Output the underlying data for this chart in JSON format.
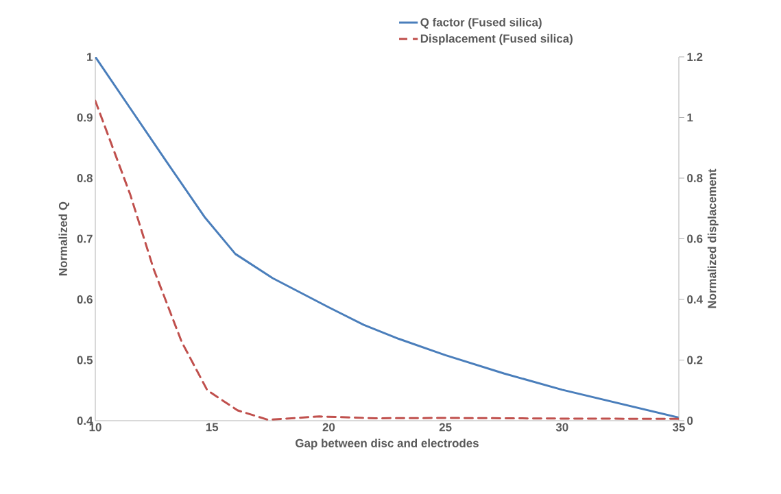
{
  "chart_data": {
    "type": "line",
    "xlabel": "Gap between disc and electrodes",
    "ylabel": "Normalized Q",
    "y2label": "Normalized displacement",
    "xlim": [
      10,
      35
    ],
    "xticks": [
      10,
      15,
      20,
      25,
      30,
      35
    ],
    "ylim": [
      0.4,
      1
    ],
    "yticks": [
      0.4,
      0.5,
      0.6,
      0.7,
      0.8,
      0.9,
      1
    ],
    "y2lim": [
      0,
      1.2
    ],
    "y2ticks": [
      0,
      0.2,
      0.4,
      0.6,
      0.8,
      1,
      1.2
    ],
    "grid": false,
    "legend": "top",
    "marker": "none",
    "series": [
      {
        "name": "Q factor (Fused silica)",
        "color": "#4a7ebb",
        "line_style": "solid",
        "x": [
          10,
          11.5,
          13,
          14.7,
          16,
          17.6,
          20,
          21.5,
          23,
          25,
          27.5,
          30,
          32.5,
          35
        ],
        "values": [
          1,
          0.915,
          0.83,
          0.735,
          0.675,
          0.635,
          0.587,
          0.558,
          0.535,
          0.508,
          0.478,
          0.451,
          0.428,
          0.405
        ]
      },
      {
        "name": "Displacement (Fused silica)",
        "color": "#c0504d",
        "line_style": "dashed",
        "axis": "y2",
        "x": [
          10,
          11.5,
          12.5,
          13.7,
          14.8,
          16.1,
          17.4,
          19.6,
          22,
          25,
          30,
          35
        ],
        "values": [
          1.055,
          0.745,
          0.5,
          0.26,
          0.1,
          0.034,
          0.003,
          0.014,
          0.008,
          0.009,
          0.007,
          0.006
        ]
      }
    ]
  }
}
